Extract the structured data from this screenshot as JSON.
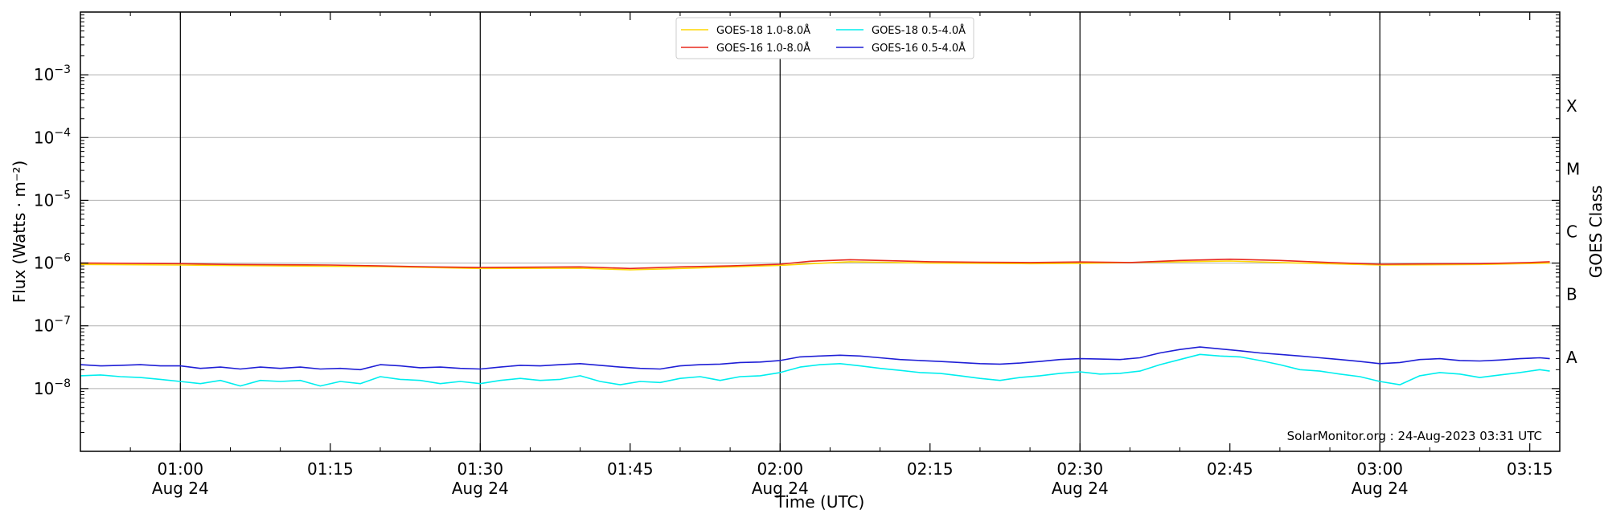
{
  "chart_data": {
    "type": "line",
    "xlabel": "Time (UTC)",
    "ylabel": "Flux (Watts · m⁻²)",
    "y2label": "GOES Class",
    "yscale": "log",
    "ylim": [
      1e-09,
      0.01
    ],
    "xlim": [
      "00:50",
      "03:18"
    ],
    "grid": "horizontal",
    "legend": "top-center",
    "credit": "SolarMonitor.org : 24-Aug-2023 03:31 UTC",
    "x_ticks": [
      {
        "time": "01:00",
        "line1": "01:00",
        "line2": "Aug 24"
      },
      {
        "time": "01:15",
        "line1": "01:15",
        "line2": ""
      },
      {
        "time": "01:30",
        "line1": "01:30",
        "line2": "Aug 24"
      },
      {
        "time": "01:45",
        "line1": "01:45",
        "line2": ""
      },
      {
        "time": "02:00",
        "line1": "02:00",
        "line2": "Aug 24"
      },
      {
        "time": "02:15",
        "line1": "02:15",
        "line2": ""
      },
      {
        "time": "02:30",
        "line1": "02:30",
        "line2": "Aug 24"
      },
      {
        "time": "02:45",
        "line1": "02:45",
        "line2": ""
      },
      {
        "time": "03:00",
        "line1": "03:00",
        "line2": "Aug 24"
      },
      {
        "time": "03:15",
        "line1": "03:15",
        "line2": ""
      }
    ],
    "vertical_lines": [
      "01:00",
      "01:30",
      "02:00",
      "02:30",
      "03:00"
    ],
    "y_ticks": [
      {
        "value": 1e-08,
        "base": "10",
        "exp": "−8"
      },
      {
        "value": 1e-07,
        "base": "10",
        "exp": "−7"
      },
      {
        "value": 1e-06,
        "base": "10",
        "exp": "−6"
      },
      {
        "value": 1e-05,
        "base": "10",
        "exp": "−5"
      },
      {
        "value": 0.0001,
        "base": "10",
        "exp": "−4"
      },
      {
        "value": 0.001,
        "base": "10",
        "exp": "−3"
      }
    ],
    "goes_classes": [
      {
        "label": "A",
        "value": 3.16e-08
      },
      {
        "label": "B",
        "value": 3.16e-07
      },
      {
        "label": "C",
        "value": 3.16e-06
      },
      {
        "label": "M",
        "value": 3.16e-05
      },
      {
        "label": "X",
        "value": 0.000316
      }
    ],
    "series": [
      {
        "name": "GOES-18 1.0-8.0Å",
        "color": "#ffd700",
        "x": [
          "00:50",
          "01:00",
          "01:10",
          "01:20",
          "01:30",
          "01:40",
          "01:45",
          "01:50",
          "02:00",
          "02:07",
          "02:15",
          "02:25",
          "02:30",
          "02:40",
          "02:45",
          "02:50",
          "03:00",
          "03:10",
          "03:17"
        ],
        "y": [
          9.5e-07,
          9.3e-07,
          9e-07,
          8.8e-07,
          8.2e-07,
          8.3e-07,
          7.8e-07,
          8.2e-07,
          9.2e-07,
          1.05e-06,
          1e-06,
          9.8e-07,
          9.9e-07,
          1.05e-06,
          1.08e-06,
          1.02e-06,
          9.3e-07,
          9.5e-07,
          1e-06
        ]
      },
      {
        "name": "GOES-16 1.0-8.0Å",
        "color": "#e8291d",
        "x": [
          "00:50",
          "00:55",
          "01:00",
          "01:05",
          "01:10",
          "01:15",
          "01:20",
          "01:25",
          "01:30",
          "01:35",
          "01:40",
          "01:45",
          "01:50",
          "01:55",
          "02:00",
          "02:03",
          "02:07",
          "02:10",
          "02:15",
          "02:20",
          "02:25",
          "02:30",
          "02:35",
          "02:40",
          "02:45",
          "02:50",
          "02:55",
          "03:00",
          "03:05",
          "03:10",
          "03:15",
          "03:17"
        ],
        "y": [
          1e-06,
          9.9e-07,
          9.8e-07,
          9.5e-07,
          9.4e-07,
          9.3e-07,
          9e-07,
          8.7e-07,
          8.5e-07,
          8.6e-07,
          8.7e-07,
          8.2e-07,
          8.7e-07,
          9e-07,
          9.6e-07,
          1.07e-06,
          1.13e-06,
          1.1e-06,
          1.05e-06,
          1.03e-06,
          1.02e-06,
          1.04e-06,
          1.02e-06,
          1.1e-06,
          1.15e-06,
          1.1e-06,
          1.02e-06,
          9.6e-07,
          9.7e-07,
          9.8e-07,
          1.02e-06,
          1.05e-06
        ]
      },
      {
        "name": "GOES-18 0.5-4.0Å",
        "color": "#00eeee",
        "x": [
          "00:50",
          "00:52",
          "00:54",
          "00:56",
          "00:58",
          "01:00",
          "01:02",
          "01:04",
          "01:06",
          "01:08",
          "01:10",
          "01:12",
          "01:14",
          "01:16",
          "01:18",
          "01:20",
          "01:22",
          "01:24",
          "01:26",
          "01:28",
          "01:30",
          "01:32",
          "01:34",
          "01:36",
          "01:38",
          "01:40",
          "01:42",
          "01:44",
          "01:46",
          "01:48",
          "01:50",
          "01:52",
          "01:54",
          "01:56",
          "01:58",
          "02:00",
          "02:02",
          "02:04",
          "02:06",
          "02:08",
          "02:10",
          "02:12",
          "02:14",
          "02:16",
          "02:18",
          "02:20",
          "02:22",
          "02:24",
          "02:26",
          "02:28",
          "02:30",
          "02:32",
          "02:34",
          "02:36",
          "02:38",
          "02:40",
          "02:42",
          "02:44",
          "02:46",
          "02:48",
          "02:50",
          "02:52",
          "02:54",
          "02:56",
          "02:58",
          "03:00",
          "03:02",
          "03:04",
          "03:06",
          "03:08",
          "03:10",
          "03:12",
          "03:14",
          "03:16",
          "03:17"
        ],
        "y": [
          1.6e-08,
          1.65e-08,
          1.55e-08,
          1.5e-08,
          1.4e-08,
          1.3e-08,
          1.2e-08,
          1.35e-08,
          1.1e-08,
          1.35e-08,
          1.3e-08,
          1.35e-08,
          1.1e-08,
          1.3e-08,
          1.2e-08,
          1.55e-08,
          1.4e-08,
          1.35e-08,
          1.2e-08,
          1.3e-08,
          1.2e-08,
          1.35e-08,
          1.45e-08,
          1.35e-08,
          1.4e-08,
          1.6e-08,
          1.3e-08,
          1.15e-08,
          1.3e-08,
          1.25e-08,
          1.45e-08,
          1.55e-08,
          1.35e-08,
          1.55e-08,
          1.6e-08,
          1.8e-08,
          2.2e-08,
          2.4e-08,
          2.5e-08,
          2.3e-08,
          2.1e-08,
          1.95e-08,
          1.8e-08,
          1.75e-08,
          1.6e-08,
          1.45e-08,
          1.35e-08,
          1.5e-08,
          1.6e-08,
          1.75e-08,
          1.85e-08,
          1.7e-08,
          1.75e-08,
          1.9e-08,
          2.4e-08,
          2.9e-08,
          3.5e-08,
          3.3e-08,
          3.2e-08,
          2.8e-08,
          2.4e-08,
          2e-08,
          1.9e-08,
          1.7e-08,
          1.55e-08,
          1.3e-08,
          1.15e-08,
          1.6e-08,
          1.8e-08,
          1.7e-08,
          1.5e-08,
          1.65e-08,
          1.8e-08,
          2e-08,
          1.9e-08
        ]
      },
      {
        "name": "GOES-16 0.5-4.0Å",
        "color": "#1f1fd6",
        "x": [
          "00:50",
          "00:52",
          "00:54",
          "00:56",
          "00:58",
          "01:00",
          "01:02",
          "01:04",
          "01:06",
          "01:08",
          "01:10",
          "01:12",
          "01:14",
          "01:16",
          "01:18",
          "01:20",
          "01:22",
          "01:24",
          "01:26",
          "01:28",
          "01:30",
          "01:32",
          "01:34",
          "01:36",
          "01:38",
          "01:40",
          "01:42",
          "01:44",
          "01:46",
          "01:48",
          "01:50",
          "01:52",
          "01:54",
          "01:56",
          "01:58",
          "02:00",
          "02:02",
          "02:04",
          "02:06",
          "02:08",
          "02:10",
          "02:12",
          "02:14",
          "02:16",
          "02:18",
          "02:20",
          "02:22",
          "02:24",
          "02:26",
          "02:28",
          "02:30",
          "02:32",
          "02:34",
          "02:36",
          "02:38",
          "02:40",
          "02:42",
          "02:44",
          "02:46",
          "02:48",
          "02:50",
          "02:52",
          "02:54",
          "02:56",
          "02:58",
          "03:00",
          "03:02",
          "03:04",
          "03:06",
          "03:08",
          "03:10",
          "03:12",
          "03:14",
          "03:16",
          "03:17"
        ],
        "y": [
          2.4e-08,
          2.3e-08,
          2.35e-08,
          2.4e-08,
          2.3e-08,
          2.3e-08,
          2.1e-08,
          2.2e-08,
          2.05e-08,
          2.2e-08,
          2.1e-08,
          2.2e-08,
          2.05e-08,
          2.1e-08,
          2e-08,
          2.4e-08,
          2.3e-08,
          2.15e-08,
          2.2e-08,
          2.1e-08,
          2.05e-08,
          2.2e-08,
          2.35e-08,
          2.3e-08,
          2.4e-08,
          2.5e-08,
          2.35e-08,
          2.2e-08,
          2.1e-08,
          2.05e-08,
          2.3e-08,
          2.4e-08,
          2.45e-08,
          2.6e-08,
          2.65e-08,
          2.8e-08,
          3.2e-08,
          3.3e-08,
          3.4e-08,
          3.3e-08,
          3.1e-08,
          2.9e-08,
          2.8e-08,
          2.7e-08,
          2.6e-08,
          2.5e-08,
          2.45e-08,
          2.55e-08,
          2.7e-08,
          2.9e-08,
          3e-08,
          2.95e-08,
          2.9e-08,
          3.1e-08,
          3.7e-08,
          4.2e-08,
          4.6e-08,
          4.3e-08,
          4e-08,
          3.7e-08,
          3.5e-08,
          3.3e-08,
          3.1e-08,
          2.9e-08,
          2.7e-08,
          2.5e-08,
          2.6e-08,
          2.9e-08,
          3e-08,
          2.8e-08,
          2.75e-08,
          2.85e-08,
          3e-08,
          3.1e-08,
          3e-08
        ]
      }
    ]
  }
}
